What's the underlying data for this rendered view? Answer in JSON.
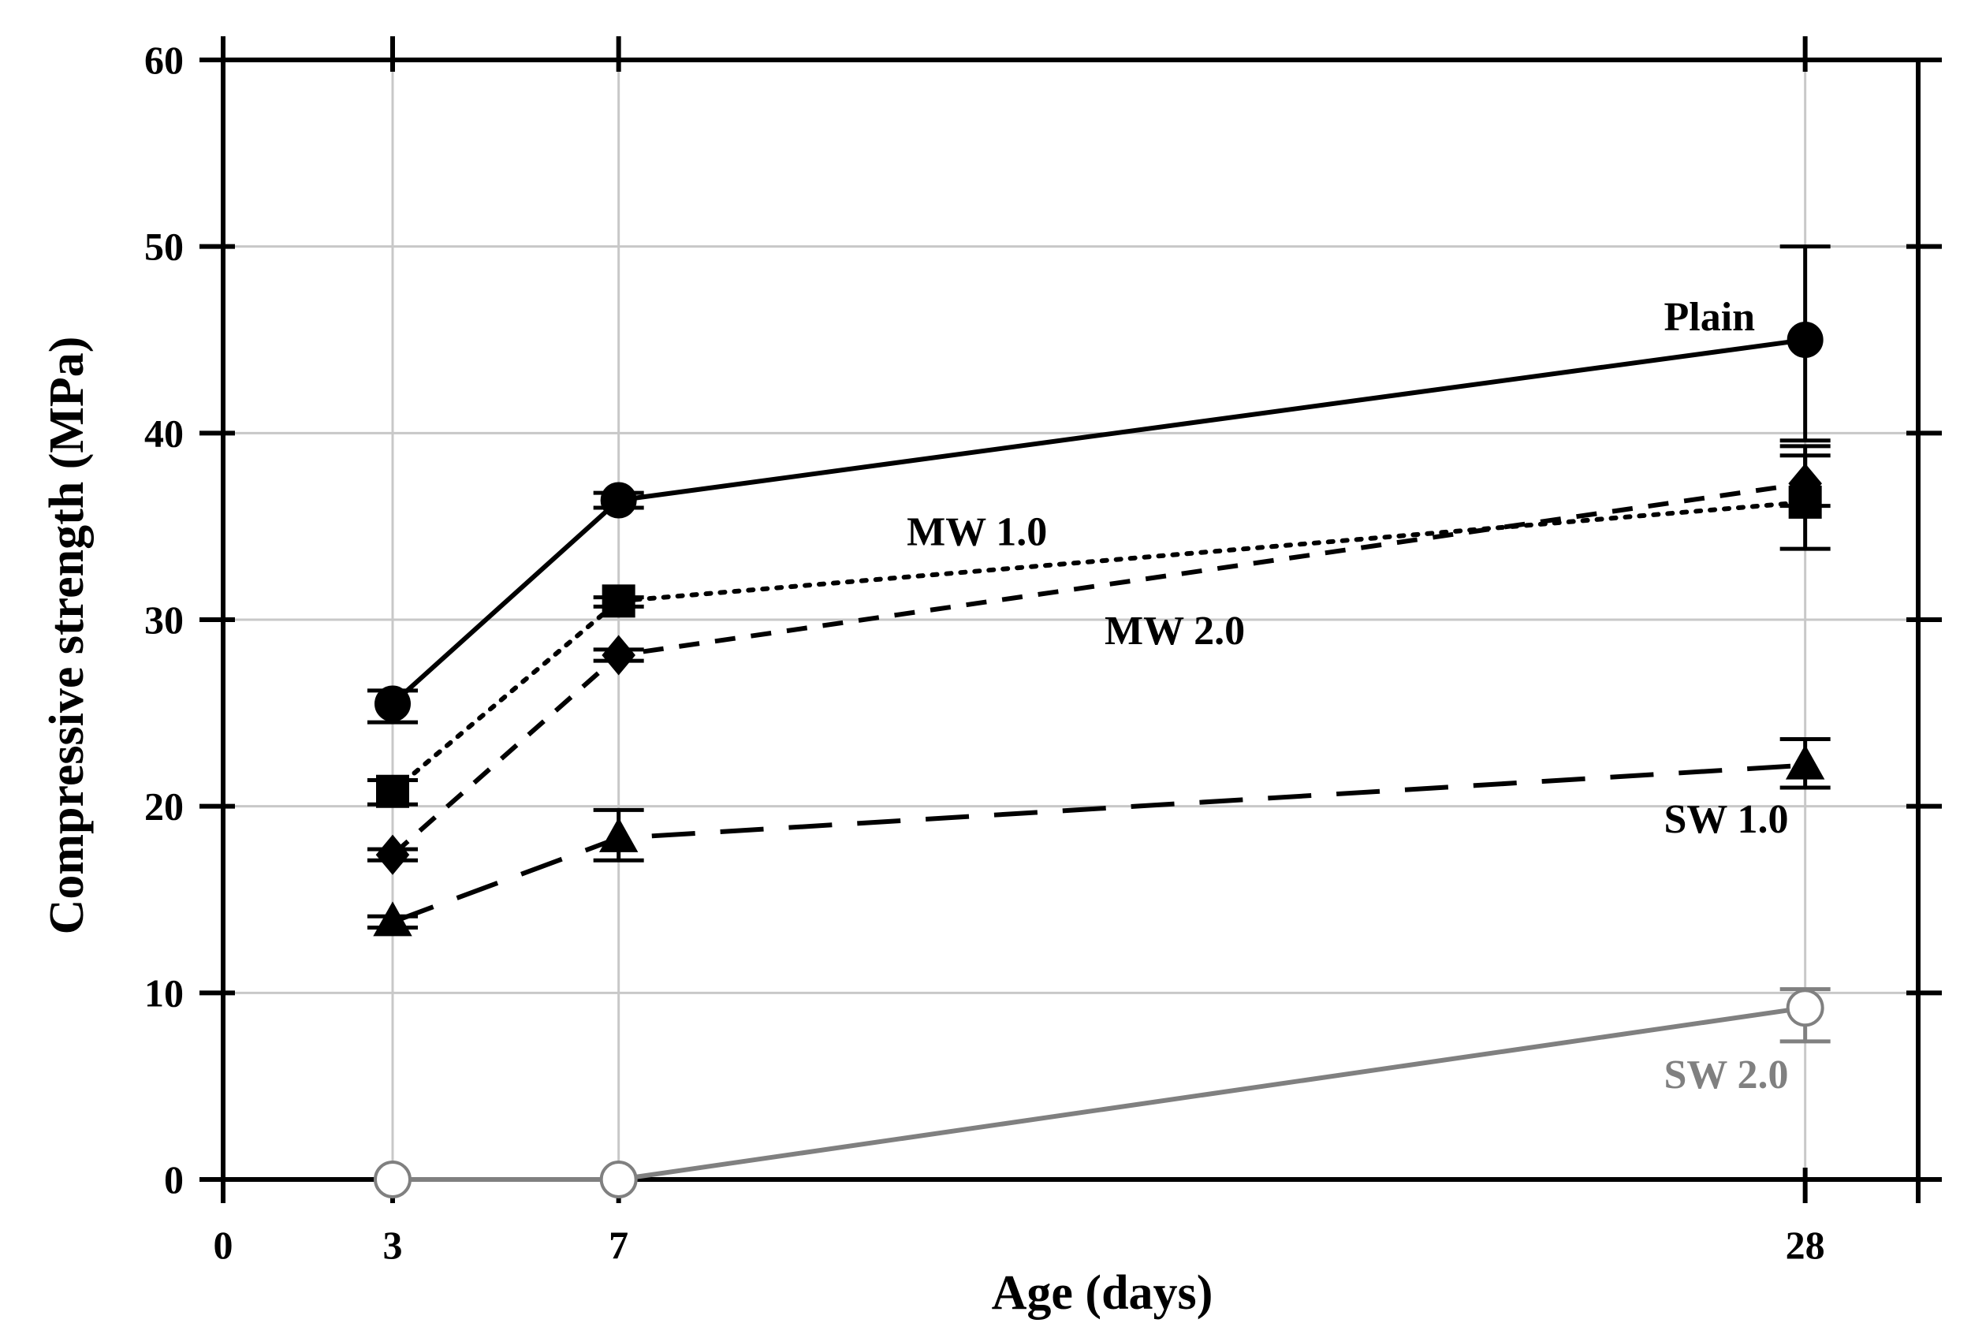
{
  "chart_data": {
    "type": "line",
    "title": "",
    "xlabel": "Age (days)",
    "ylabel": "Compressive strength (MPa)",
    "xlim": [
      0,
      30
    ],
    "ylim": [
      0,
      60
    ],
    "x_ticks": [
      {
        "value": 0,
        "label": "0"
      },
      {
        "value": 3,
        "label": "3"
      },
      {
        "value": 7,
        "label": "7"
      },
      {
        "value": 28,
        "label": "28"
      }
    ],
    "y_ticks": [
      {
        "value": 0,
        "label": "0"
      },
      {
        "value": 10,
        "label": "10"
      },
      {
        "value": 20,
        "label": "20"
      },
      {
        "value": 30,
        "label": "30"
      },
      {
        "value": 40,
        "label": "40"
      },
      {
        "value": 50,
        "label": "50"
      },
      {
        "value": 60,
        "label": "60"
      }
    ],
    "x_gridlines": [
      3,
      7,
      28
    ],
    "y_gridlines": [
      10,
      20,
      30,
      40,
      50
    ],
    "series": [
      {
        "name": "Plain",
        "color": "#000000",
        "line_style": "solid",
        "marker": "circle",
        "filled": true,
        "points": [
          {
            "x": 3,
            "y": 25.5,
            "err_low": 24.5,
            "err_high": 26.2
          },
          {
            "x": 7,
            "y": 36.4,
            "err_low": 36.0,
            "err_high": 36.8
          },
          {
            "x": 28,
            "y": 45.0,
            "err_low": 39.6,
            "err_high": 50.0
          }
        ],
        "label": {
          "text": "Plain",
          "x": 25.5,
          "y": 45.5
        }
      },
      {
        "name": "MW 1.0",
        "color": "#000000",
        "line_style": "dotted",
        "marker": "square",
        "filled": true,
        "points": [
          {
            "x": 3,
            "y": 20.8,
            "err_low": 20.1,
            "err_high": 21.4
          },
          {
            "x": 7,
            "y": 31.0,
            "err_low": 30.7,
            "err_high": 31.2
          },
          {
            "x": 28,
            "y": 36.3,
            "err_low": 33.8,
            "err_high": 38.8
          }
        ],
        "label": {
          "text": "MW 1.0",
          "x": 12.1,
          "y": 34.0
        }
      },
      {
        "name": "MW 2.0",
        "color": "#000000",
        "line_style": "dashed",
        "marker": "diamond",
        "filled": true,
        "points": [
          {
            "x": 3,
            "y": 17.4,
            "err_low": 17.1,
            "err_high": 17.7
          },
          {
            "x": 7,
            "y": 28.1,
            "err_low": 27.8,
            "err_high": 28.4
          },
          {
            "x": 28,
            "y": 37.3,
            "err_low": 36.1,
            "err_high": 39.3
          }
        ],
        "label": {
          "text": "MW 2.0",
          "x": 15.6,
          "y": 28.7
        }
      },
      {
        "name": "SW 1.0",
        "color": "#000000",
        "line_style": "long-dash",
        "marker": "triangle",
        "filled": true,
        "points": [
          {
            "x": 3,
            "y": 13.8,
            "err_low": 13.5,
            "err_high": 14.1
          },
          {
            "x": 7,
            "y": 18.3,
            "err_low": 17.1,
            "err_high": 19.8
          },
          {
            "x": 28,
            "y": 22.2,
            "err_low": 21.0,
            "err_high": 23.6
          }
        ],
        "label": {
          "text": "SW 1.0",
          "x": 25.5,
          "y": 18.6
        }
      },
      {
        "name": "SW 2.0",
        "color": "#808080",
        "line_style": "solid",
        "marker": "circle",
        "filled": false,
        "points": [
          {
            "x": 3,
            "y": 0,
            "err_low": 0,
            "err_high": 0
          },
          {
            "x": 7,
            "y": 0,
            "err_low": 0,
            "err_high": 0
          },
          {
            "x": 28,
            "y": 9.2,
            "err_low": 7.4,
            "err_high": 10.2
          }
        ],
        "label": {
          "text": "SW 2.0",
          "x": 25.5,
          "y": 4.9
        }
      }
    ]
  }
}
